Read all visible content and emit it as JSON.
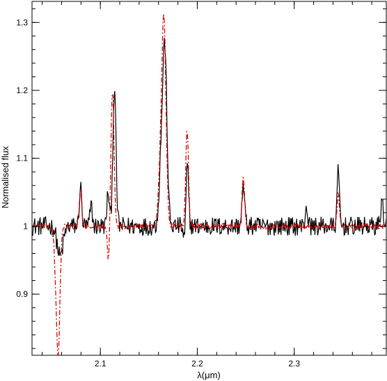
{
  "chart_data": {
    "type": "line",
    "xlabel": "λ(μm)",
    "ylabel": "Normalised flux",
    "xlim": [
      2.0295,
      2.395
    ],
    "ylim": [
      0.81,
      1.331
    ],
    "x_ticks": [
      2.1,
      2.2,
      2.3
    ],
    "x_tick_labels": [
      "2.1",
      "2.2",
      "2.3"
    ],
    "y_ticks": [
      0.9,
      1.0,
      1.1,
      1.2,
      1.3
    ],
    "y_tick_labels": [
      "0.9",
      "1",
      "1.1",
      "1.2",
      "1.3"
    ],
    "x_minor_step": 0.02,
    "y_minor_step": 0.02,
    "grid": false,
    "series": [
      {
        "style": "solid",
        "color": "#000000",
        "features": [
          {
            "center": 2.0585,
            "amp": -0.045,
            "width": 0.003
          },
          {
            "center": 2.0795,
            "amp": 0.058,
            "width": 0.0012
          },
          {
            "center": 2.0905,
            "amp": 0.03,
            "width": 0.0012
          },
          {
            "center": 2.108,
            "amp": 0.05,
            "width": 0.0012
          },
          {
            "center": 2.1145,
            "amp": 0.205,
            "width": 0.0016
          },
          {
            "center": 2.1625,
            "amp": 0.08,
            "width": 0.002
          },
          {
            "center": 2.1665,
            "amp": 0.26,
            "width": 0.0022
          },
          {
            "center": 2.1895,
            "amp": 0.1,
            "width": 0.0014
          },
          {
            "center": 2.1875,
            "amp": -0.035,
            "width": 0.0015
          },
          {
            "center": 2.2475,
            "amp": 0.055,
            "width": 0.0014
          },
          {
            "center": 2.3125,
            "amp": 0.03,
            "width": 0.0012
          },
          {
            "center": 2.3455,
            "amp": 0.08,
            "width": 0.0012
          },
          {
            "center": 2.3905,
            "amp": 0.035,
            "width": 0.0015
          }
        ],
        "noise": 0.014
      },
      {
        "style": "dash-dot",
        "color": "#e00000",
        "features": [
          {
            "center": 2.0565,
            "amp": -0.185,
            "width": 0.0018
          },
          {
            "center": 2.0535,
            "amp": -0.035,
            "width": 0.0015
          },
          {
            "center": 2.0795,
            "amp": 0.055,
            "width": 0.0012
          },
          {
            "center": 2.1085,
            "amp": -0.058,
            "width": 0.0012
          },
          {
            "center": 2.1125,
            "amp": 0.2,
            "width": 0.0016
          },
          {
            "center": 2.1655,
            "amp": 0.305,
            "width": 0.0022
          },
          {
            "center": 2.1615,
            "amp": 0.06,
            "width": 0.002
          },
          {
            "center": 2.1895,
            "amp": 0.145,
            "width": 0.0014
          },
          {
            "center": 2.2475,
            "amp": 0.07,
            "width": 0.0014
          },
          {
            "center": 2.3455,
            "amp": 0.05,
            "width": 0.0012
          }
        ],
        "noise": 0.004
      }
    ]
  }
}
